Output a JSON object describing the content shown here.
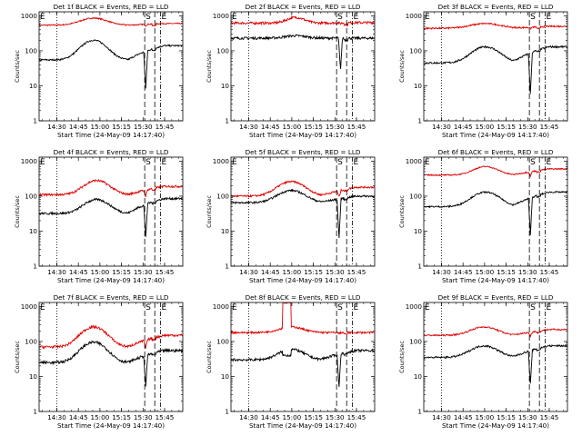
{
  "colors": {
    "events": "#000000",
    "lld": "#e00000",
    "axes": "#000000",
    "background": "#ffffff"
  },
  "shared": {
    "ylabel": "Counts/sec",
    "xlabel": "Start Time (24-May-09 14:17:40)",
    "x_ticks": [
      "14:30",
      "14:45",
      "15:00",
      "15:15",
      "15:30",
      "15:45"
    ],
    "x_tick_minutes": [
      12.33,
      27.33,
      42.33,
      57.33,
      72.33,
      87.33
    ],
    "x_range_minutes": [
      0,
      100
    ],
    "y_ticks": [
      "1",
      "10",
      "100",
      "1000"
    ],
    "y_tick_values": [
      1,
      10,
      100,
      1000
    ],
    "ylim": [
      1,
      1300
    ],
    "yscale": "log",
    "markers": {
      "E_label": "E",
      "S_label": "S",
      "dotted_minute": 12.33,
      "dash_minutes": [
        73.5,
        80.5
      ],
      "dashdot_minute": 84.5
    }
  },
  "chart_data": [
    {
      "type": "line",
      "title": "Det 1f BLACK = Events, RED = LLD",
      "series": [
        {
          "name": "Events",
          "color": "#000000",
          "base": 55,
          "peak": 200,
          "peak_minute": 38,
          "width": 11,
          "noise": 0.05,
          "end": 140,
          "dip_minute": 74,
          "dip_value": 8
        },
        {
          "name": "LLD",
          "color": "#e00000",
          "base": 540,
          "peak": 860,
          "peak_minute": 38,
          "width": 12,
          "noise": 0.04,
          "end": 600,
          "dip_minute": 74,
          "dip_value": 520
        }
      ]
    },
    {
      "type": "line",
      "title": "Det 2f BLACK = Events, RED = LLD",
      "series": [
        {
          "name": "Events",
          "color": "#000000",
          "base": 230,
          "peak": 270,
          "peak_minute": 45,
          "width": 10,
          "noise": 0.08,
          "end": 230,
          "dip_minute": 76,
          "dip_value": 28
        },
        {
          "name": "LLD",
          "color": "#e00000",
          "base": 620,
          "peak": 900,
          "peak_minute": 45,
          "width": 8,
          "noise": 0.08,
          "end": 640,
          "dip_minute": 76,
          "dip_value": 600
        }
      ]
    },
    {
      "type": "line",
      "title": "Det 3f BLACK = Events, RED = LLD",
      "series": [
        {
          "name": "Events",
          "color": "#000000",
          "base": 45,
          "peak": 130,
          "peak_minute": 43,
          "width": 12,
          "noise": 0.06,
          "end": 130,
          "dip_minute": 74,
          "dip_value": 6
        },
        {
          "name": "LLD",
          "color": "#e00000",
          "base": 440,
          "peak": 600,
          "peak_minute": 43,
          "width": 14,
          "noise": 0.05,
          "end": 500,
          "dip_minute": 74,
          "dip_value": 430
        }
      ]
    },
    {
      "type": "line",
      "title": "Det 4f BLACK = Events, RED = LLD",
      "series": [
        {
          "name": "Events",
          "color": "#000000",
          "base": 32,
          "peak": 80,
          "peak_minute": 40,
          "width": 11,
          "noise": 0.07,
          "end": 85,
          "dip_minute": 74,
          "dip_value": 7
        },
        {
          "name": "LLD",
          "color": "#e00000",
          "base": 110,
          "peak": 280,
          "peak_minute": 40,
          "width": 11,
          "noise": 0.07,
          "end": 190,
          "dip_minute": 74,
          "dip_value": 100
        }
      ]
    },
    {
      "type": "line",
      "title": "Det 5f BLACK = Events, RED = LLD",
      "series": [
        {
          "name": "Events",
          "color": "#000000",
          "base": 65,
          "peak": 145,
          "peak_minute": 42,
          "width": 12,
          "noise": 0.06,
          "end": 100,
          "dip_minute": 75,
          "dip_value": 6
        },
        {
          "name": "LLD",
          "color": "#e00000",
          "base": 100,
          "peak": 260,
          "peak_minute": 42,
          "width": 12,
          "noise": 0.06,
          "end": 180,
          "dip_minute": 75,
          "dip_value": 95
        }
      ]
    },
    {
      "type": "line",
      "title": "Det 6f BLACK = Events, RED = LLD",
      "series": [
        {
          "name": "Events",
          "color": "#000000",
          "base": 50,
          "peak": 130,
          "peak_minute": 43,
          "width": 12,
          "noise": 0.05,
          "end": 130,
          "dip_minute": 74,
          "dip_value": 8
        },
        {
          "name": "LLD",
          "color": "#e00000",
          "base": 400,
          "peak": 700,
          "peak_minute": 43,
          "width": 11,
          "noise": 0.04,
          "end": 600,
          "dip_minute": 74,
          "dip_value": 380
        }
      ]
    },
    {
      "type": "line",
      "title": "Det 7f BLACK = Events, RED = LLD",
      "series": [
        {
          "name": "Events",
          "color": "#000000",
          "base": 25,
          "peak": 95,
          "peak_minute": 38,
          "width": 11,
          "noise": 0.09,
          "end": 55,
          "dip_minute": 74,
          "dip_value": 5
        },
        {
          "name": "LLD",
          "color": "#e00000",
          "base": 70,
          "peak": 260,
          "peak_minute": 38,
          "width": 11,
          "noise": 0.08,
          "end": 150,
          "dip_minute": 74,
          "dip_value": 65
        }
      ]
    },
    {
      "type": "line",
      "title": "Det 8f BLACK = Events, RED = LLD",
      "series": [
        {
          "name": "Events",
          "color": "#000000",
          "base": 30,
          "peak": 60,
          "peak_minute": 42,
          "width": 11,
          "noise": 0.08,
          "end": 55,
          "dip_minute": 75,
          "dip_value": 5,
          "spike_start": 36,
          "spike_end": 42,
          "spike_value": 40
        },
        {
          "name": "LLD",
          "color": "#e00000",
          "base": 180,
          "peak": 260,
          "peak_minute": 42,
          "width": 11,
          "noise": 0.06,
          "end": 180,
          "dip_minute": 75,
          "dip_value": 170,
          "spike_start": 36,
          "spike_end": 42,
          "spike_value": 1300
        }
      ]
    },
    {
      "type": "line",
      "title": "Det 9f BLACK = Events, RED = LLD",
      "series": [
        {
          "name": "Events",
          "color": "#000000",
          "base": 35,
          "peak": 75,
          "peak_minute": 42,
          "width": 12,
          "noise": 0.06,
          "end": 75,
          "dip_minute": 74,
          "dip_value": 6
        },
        {
          "name": "LLD",
          "color": "#e00000",
          "base": 150,
          "peak": 260,
          "peak_minute": 42,
          "width": 12,
          "noise": 0.05,
          "end": 220,
          "dip_minute": 74,
          "dip_value": 140
        }
      ]
    }
  ]
}
